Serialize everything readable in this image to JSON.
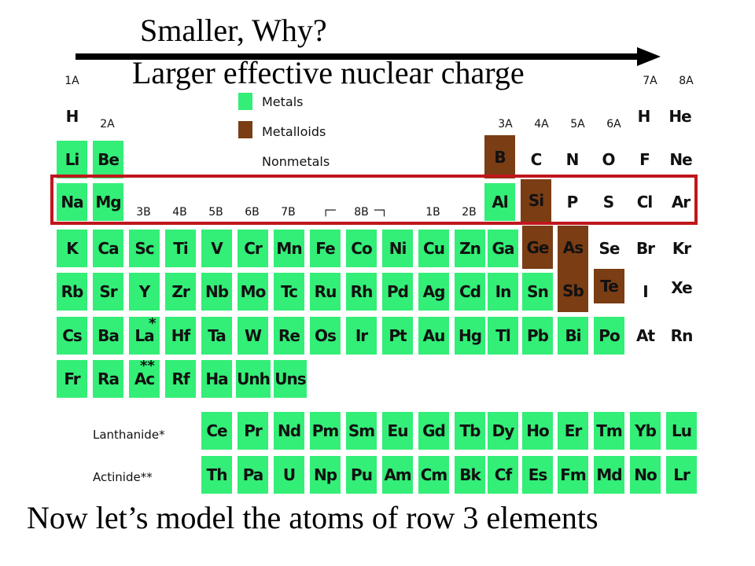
{
  "slide": {
    "title": "Smaller, Why?",
    "subtitle": "Larger effective nuclear charge",
    "footer": "Now let’s model the atoms of row 3 elements"
  },
  "colors": {
    "metal": "#33ee77",
    "metalloid": "#7a3d14",
    "highlight": "#c0161c",
    "arrow": "#000000"
  },
  "legend": {
    "metals": "Metals",
    "metalloids": "Metalloids",
    "nonmetals": "Nonmetals"
  },
  "groups": {
    "g1A": "1A",
    "g2A": "2A",
    "g3B": "3B",
    "g4B": "4B",
    "g5B": "5B",
    "g6B": "6B",
    "g7B": "7B",
    "g8B": "8B",
    "g1B": "1B",
    "g2B": "2B",
    "g3A": "3A",
    "g4A": "4A",
    "g5A": "5A",
    "g6A": "6A",
    "g7A": "7A",
    "g8A": "8A"
  },
  "series": {
    "lanthanide": "Lanthanide",
    "actinide": "Actinide",
    "lanthanide_marker": "*",
    "actinide_marker": "**"
  },
  "elements": [
    {
      "sym": "H",
      "type": "nonmetal"
    },
    {
      "sym": "H",
      "type": "nonmetal"
    },
    {
      "sym": "He",
      "type": "nonmetal"
    },
    {
      "sym": "Li",
      "type": "metal"
    },
    {
      "sym": "Be",
      "type": "metal"
    },
    {
      "sym": "B",
      "type": "metalloid"
    },
    {
      "sym": "C",
      "type": "nonmetal"
    },
    {
      "sym": "N",
      "type": "nonmetal"
    },
    {
      "sym": "O",
      "type": "nonmetal"
    },
    {
      "sym": "F",
      "type": "nonmetal"
    },
    {
      "sym": "Ne",
      "type": "nonmetal"
    },
    {
      "sym": "Na",
      "type": "metal"
    },
    {
      "sym": "Mg",
      "type": "metal"
    },
    {
      "sym": "Al",
      "type": "metal"
    },
    {
      "sym": "Si",
      "type": "metalloid"
    },
    {
      "sym": "P",
      "type": "nonmetal"
    },
    {
      "sym": "S",
      "type": "nonmetal"
    },
    {
      "sym": "Cl",
      "type": "nonmetal"
    },
    {
      "sym": "Ar",
      "type": "nonmetal"
    },
    {
      "sym": "K",
      "type": "metal"
    },
    {
      "sym": "Ca",
      "type": "metal"
    },
    {
      "sym": "Sc",
      "type": "metal"
    },
    {
      "sym": "Ti",
      "type": "metal"
    },
    {
      "sym": "V",
      "type": "metal"
    },
    {
      "sym": "Cr",
      "type": "metal"
    },
    {
      "sym": "Mn",
      "type": "metal"
    },
    {
      "sym": "Fe",
      "type": "metal"
    },
    {
      "sym": "Co",
      "type": "metal"
    },
    {
      "sym": "Ni",
      "type": "metal"
    },
    {
      "sym": "Cu",
      "type": "metal"
    },
    {
      "sym": "Zn",
      "type": "metal"
    },
    {
      "sym": "Ga",
      "type": "metal"
    },
    {
      "sym": "Ge",
      "type": "metalloid"
    },
    {
      "sym": "As",
      "type": "metalloid"
    },
    {
      "sym": "Se",
      "type": "nonmetal"
    },
    {
      "sym": "Br",
      "type": "nonmetal"
    },
    {
      "sym": "Kr",
      "type": "nonmetal"
    },
    {
      "sym": "Rb",
      "type": "metal"
    },
    {
      "sym": "Sr",
      "type": "metal"
    },
    {
      "sym": "Y",
      "type": "metal"
    },
    {
      "sym": "Zr",
      "type": "metal"
    },
    {
      "sym": "Nb",
      "type": "metal"
    },
    {
      "sym": "Mo",
      "type": "metal"
    },
    {
      "sym": "Tc",
      "type": "metal"
    },
    {
      "sym": "Ru",
      "type": "metal"
    },
    {
      "sym": "Rh",
      "type": "metal"
    },
    {
      "sym": "Pd",
      "type": "metal"
    },
    {
      "sym": "Ag",
      "type": "metal"
    },
    {
      "sym": "Cd",
      "type": "metal"
    },
    {
      "sym": "In",
      "type": "metal"
    },
    {
      "sym": "Sn",
      "type": "metal"
    },
    {
      "sym": "Sb",
      "type": "metalloid"
    },
    {
      "sym": "Te",
      "type": "metalloid"
    },
    {
      "sym": "I",
      "type": "nonmetal"
    },
    {
      "sym": "Xe",
      "type": "nonmetal"
    },
    {
      "sym": "Cs",
      "type": "metal"
    },
    {
      "sym": "Ba",
      "type": "metal"
    },
    {
      "sym": "La",
      "type": "metal"
    },
    {
      "sym": "Hf",
      "type": "metal"
    },
    {
      "sym": "Ta",
      "type": "metal"
    },
    {
      "sym": "W",
      "type": "metal"
    },
    {
      "sym": "Re",
      "type": "metal"
    },
    {
      "sym": "Os",
      "type": "metal"
    },
    {
      "sym": "Ir",
      "type": "metal"
    },
    {
      "sym": "Pt",
      "type": "metal"
    },
    {
      "sym": "Au",
      "type": "metal"
    },
    {
      "sym": "Hg",
      "type": "metal"
    },
    {
      "sym": "Tl",
      "type": "metal"
    },
    {
      "sym": "Pb",
      "type": "metal"
    },
    {
      "sym": "Bi",
      "type": "metal"
    },
    {
      "sym": "Po",
      "type": "metal"
    },
    {
      "sym": "At",
      "type": "nonmetal"
    },
    {
      "sym": "Rn",
      "type": "nonmetal"
    },
    {
      "sym": "Fr",
      "type": "metal"
    },
    {
      "sym": "Ra",
      "type": "metal"
    },
    {
      "sym": "Ac",
      "type": "metal"
    },
    {
      "sym": "Rf",
      "type": "metal"
    },
    {
      "sym": "Ha",
      "type": "metal"
    },
    {
      "sym": "Unh",
      "type": "metal"
    },
    {
      "sym": "Uns",
      "type": "metal"
    },
    {
      "sym": "Ce",
      "type": "metal"
    },
    {
      "sym": "Pr",
      "type": "metal"
    },
    {
      "sym": "Nd",
      "type": "metal"
    },
    {
      "sym": "Pm",
      "type": "metal"
    },
    {
      "sym": "Sm",
      "type": "metal"
    },
    {
      "sym": "Eu",
      "type": "metal"
    },
    {
      "sym": "Gd",
      "type": "metal"
    },
    {
      "sym": "Tb",
      "type": "metal"
    },
    {
      "sym": "Dy",
      "type": "metal"
    },
    {
      "sym": "Ho",
      "type": "metal"
    },
    {
      "sym": "Er",
      "type": "metal"
    },
    {
      "sym": "Tm",
      "type": "metal"
    },
    {
      "sym": "Yb",
      "type": "metal"
    },
    {
      "sym": "Lu",
      "type": "metal"
    },
    {
      "sym": "Th",
      "type": "metal"
    },
    {
      "sym": "Pa",
      "type": "metal"
    },
    {
      "sym": "U",
      "type": "metal"
    },
    {
      "sym": "Np",
      "type": "metal"
    },
    {
      "sym": "Pu",
      "type": "metal"
    },
    {
      "sym": "Am",
      "type": "metal"
    },
    {
      "sym": "Cm",
      "type": "metal"
    },
    {
      "sym": "Bk",
      "type": "metal"
    },
    {
      "sym": "Cf",
      "type": "metal"
    },
    {
      "sym": "Es",
      "type": "metal"
    },
    {
      "sym": "Fm",
      "type": "metal"
    },
    {
      "sym": "Md",
      "type": "metal"
    },
    {
      "sym": "No",
      "type": "metal"
    },
    {
      "sym": "Lr",
      "type": "metal"
    }
  ]
}
